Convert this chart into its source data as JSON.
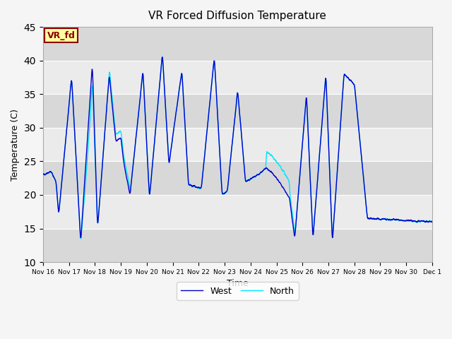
{
  "title": "VR Forced Diffusion Temperature",
  "ylabel": "Temperature (C)",
  "xlabel": "Time",
  "ylim": [
    10,
    45
  ],
  "yticks": [
    10,
    15,
    20,
    25,
    30,
    35,
    40,
    45
  ],
  "legend_west": "West",
  "legend_north": "North",
  "west_color": "#0000CD",
  "north_color": "#00E5FF",
  "bg_color_light": "#EBEBEB",
  "bg_color_dark": "#D8D8D8",
  "annotation_text": "VR_fd",
  "annotation_bg": "#FFFFA0",
  "annotation_border": "#8B0000",
  "grid_color": "#FFFFFF",
  "fig_bg": "#F5F5F5",
  "xtick_labels": [
    "Nov 16",
    "Nov 17",
    "Nov 18",
    "Nov 19",
    "Nov 20",
    "Nov 21",
    "Nov 22",
    "Nov 23",
    "Nov 24",
    "Nov 25",
    "Nov 26",
    "Nov 27",
    "Nov 28",
    "Nov 29",
    "Nov 30",
    "Dec 1"
  ],
  "n_points": 3000
}
